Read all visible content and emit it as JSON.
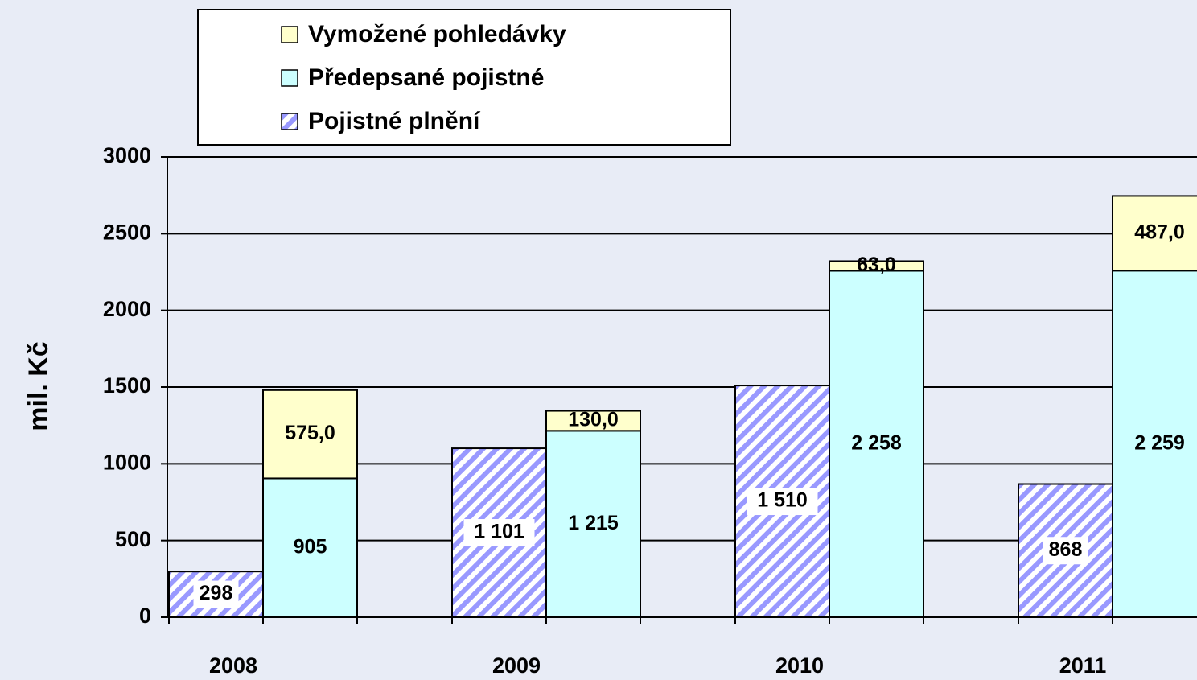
{
  "chart_data": {
    "type": "bar",
    "y_label": "mil. Kč",
    "categories": [
      "2008",
      "2009",
      "2010",
      "2011"
    ],
    "series": [
      {
        "name": "Pojistné plnění",
        "color": "#9999ff",
        "pattern": "hatch",
        "stack": 0,
        "values": [
          298,
          1101,
          1510,
          868
        ],
        "value_labels": [
          "298",
          "1 101",
          "1 510",
          "868"
        ]
      },
      {
        "name": "Předepsané pojistné",
        "color": "#ccffff",
        "stack": 1,
        "values": [
          905,
          1215,
          2258,
          2259
        ],
        "value_labels": [
          "905",
          "1 215",
          "2 258",
          "2 259"
        ]
      },
      {
        "name": "Vymožené pohledávky",
        "color": "#ffffcc",
        "stack": 1,
        "values": [
          575,
          130,
          63,
          487
        ],
        "value_labels": [
          "575,0",
          "130,0",
          "63,0",
          "487,0"
        ]
      }
    ],
    "ylim": [
      0,
      3000
    ],
    "yticks": [
      0,
      500,
      1000,
      1500,
      2000,
      2500,
      3000
    ],
    "grid": true
  }
}
